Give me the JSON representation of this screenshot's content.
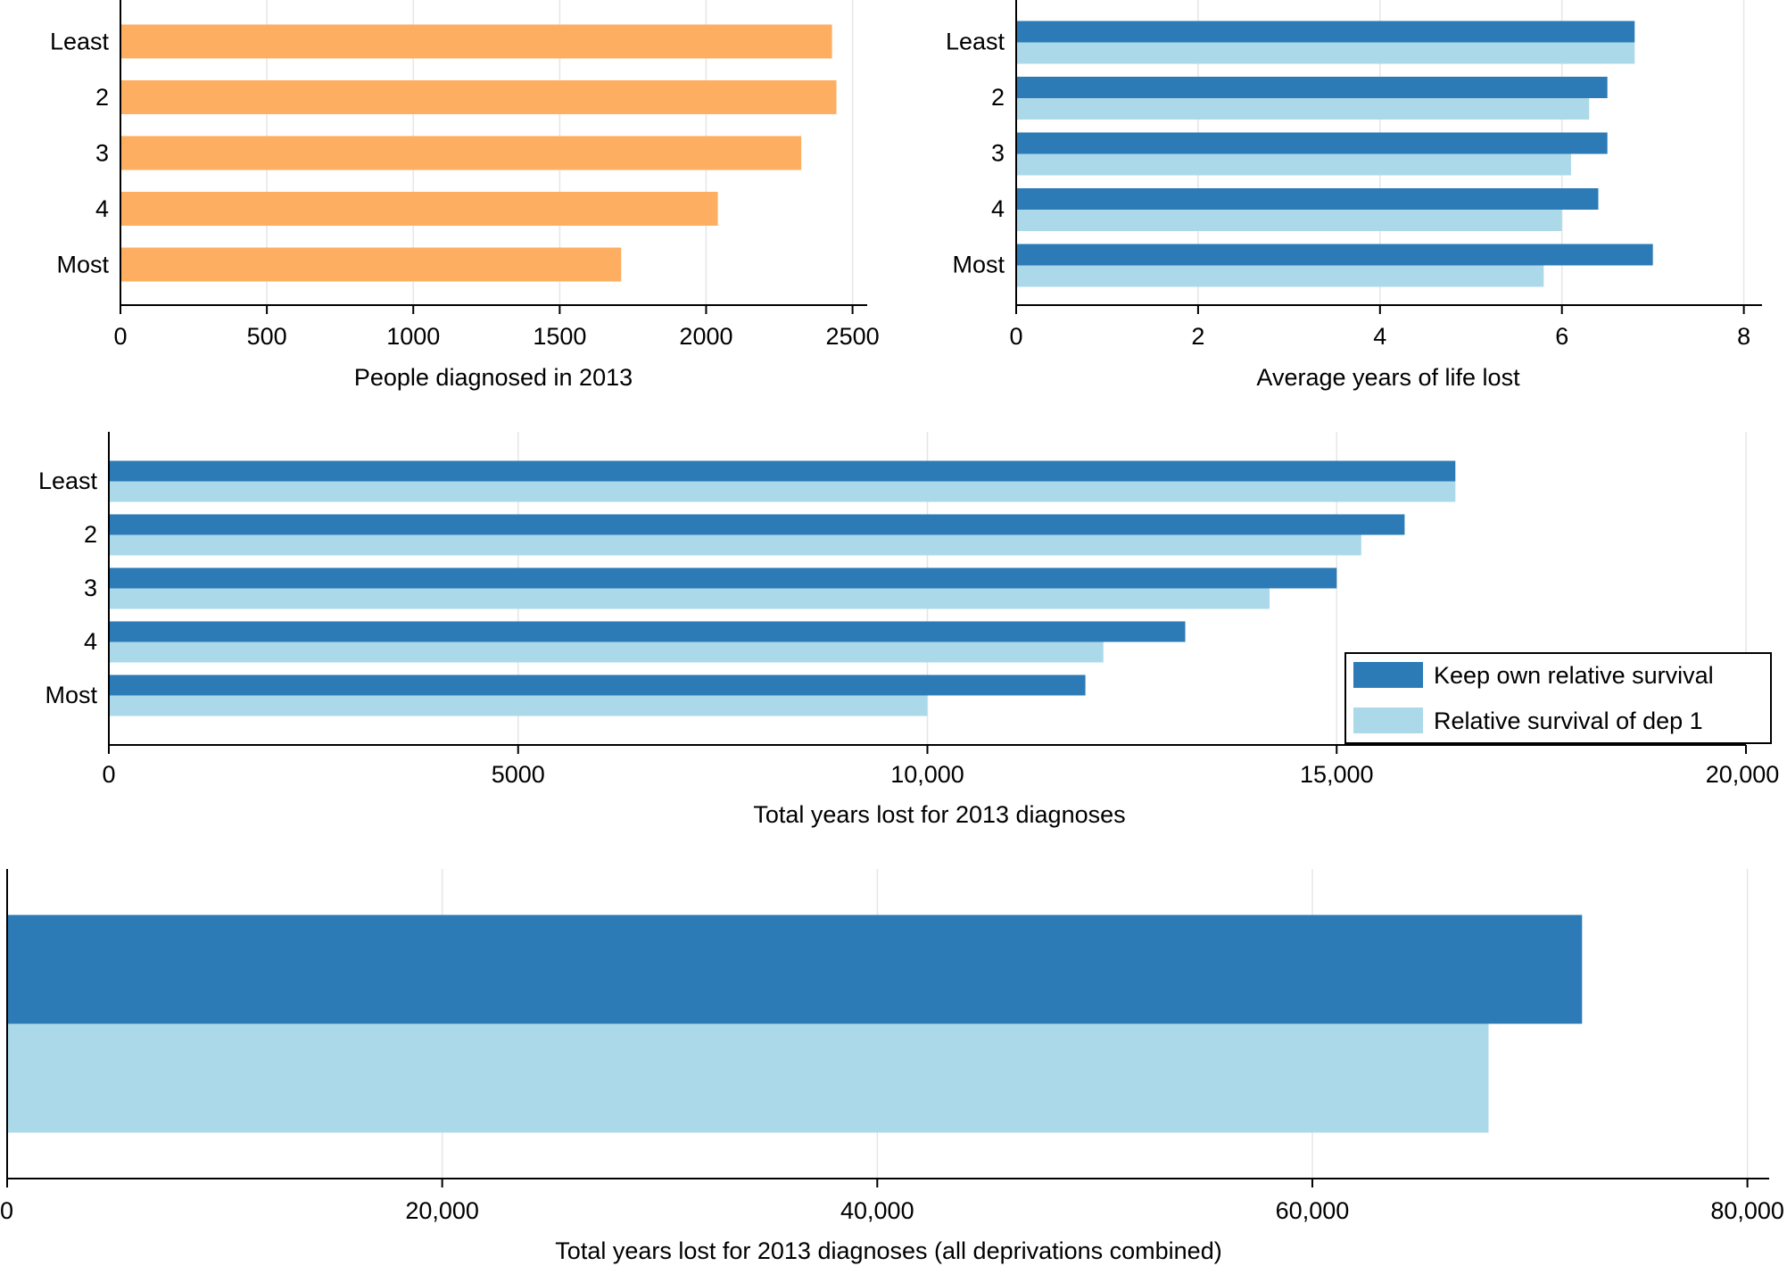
{
  "chart_data": [
    {
      "id": "diagnosed",
      "type": "bar",
      "orientation": "horizontal",
      "categories": [
        "Least",
        "2",
        "3",
        "4",
        "Most"
      ],
      "series": [
        {
          "name": "People diagnosed in 2013",
          "color": "#FDAE61",
          "values": [
            2430,
            2445,
            2325,
            2040,
            1710
          ]
        }
      ],
      "xlim": [
        0,
        2550
      ],
      "xticks": [
        0,
        500,
        1000,
        1500,
        2000,
        2500
      ],
      "xtick_labels": [
        "0",
        "500",
        "1000",
        "1500",
        "2000",
        "2500"
      ],
      "xlabel": "People diagnosed in 2013",
      "ylabel": "",
      "grid": true
    },
    {
      "id": "avg_years",
      "type": "bar",
      "orientation": "horizontal",
      "categories": [
        "Least",
        "2",
        "3",
        "4",
        "Most"
      ],
      "series": [
        {
          "name": "Keep own relative survival",
          "color": "#2C7BB6",
          "values": [
            6.8,
            6.5,
            6.5,
            6.4,
            7.0
          ]
        },
        {
          "name": "Relative survival of dep 1",
          "color": "#ABD9E9",
          "values": [
            6.8,
            6.3,
            6.1,
            6.0,
            5.8
          ]
        }
      ],
      "xlim": [
        0,
        8.2
      ],
      "xticks": [
        0,
        2,
        4,
        6,
        8
      ],
      "xtick_labels": [
        "0",
        "2",
        "4",
        "6",
        "8"
      ],
      "xlabel": "Average years of life lost",
      "ylabel": "",
      "grid": true
    },
    {
      "id": "total_years",
      "type": "bar",
      "orientation": "horizontal",
      "categories": [
        "Least",
        "2",
        "3",
        "4",
        "Most"
      ],
      "series": [
        {
          "name": "Keep own relative survival",
          "color": "#2C7BB6",
          "values": [
            16450,
            15830,
            15000,
            13150,
            11930
          ]
        },
        {
          "name": "Relative survival of dep 1",
          "color": "#ABD9E9",
          "values": [
            16450,
            15300,
            14180,
            12150,
            10000
          ]
        }
      ],
      "xlim": [
        0,
        20000
      ],
      "xticks": [
        0,
        5000,
        10000,
        15000,
        20000
      ],
      "xtick_labels": [
        "0",
        "5000",
        "10,000",
        "15,000",
        "20,000"
      ],
      "xlabel": "Total years lost for 2013 diagnoses",
      "ylabel": "",
      "legend": {
        "position": "bottom-right",
        "entries": [
          {
            "label": "Keep own relative survival",
            "color": "#2C7BB6"
          },
          {
            "label": "Relative survival of dep 1",
            "color": "#ABD9E9"
          }
        ]
      },
      "grid": true
    },
    {
      "id": "combined",
      "type": "bar",
      "orientation": "horizontal",
      "categories": [
        ""
      ],
      "series": [
        {
          "name": "Keep own relative survival",
          "color": "#2C7BB6",
          "values": [
            72400
          ]
        },
        {
          "name": "Relative survival of dep 1",
          "color": "#ABD9E9",
          "values": [
            68100
          ]
        }
      ],
      "xlim": [
        0,
        81000
      ],
      "xticks": [
        0,
        20000,
        40000,
        60000,
        80000
      ],
      "xtick_labels": [
        "0",
        "20,000",
        "40,000",
        "60,000",
        "80,000"
      ],
      "xlabel": "Total years lost for 2013 diagnoses (all deprivations combined)",
      "ylabel": "",
      "grid": true
    }
  ]
}
